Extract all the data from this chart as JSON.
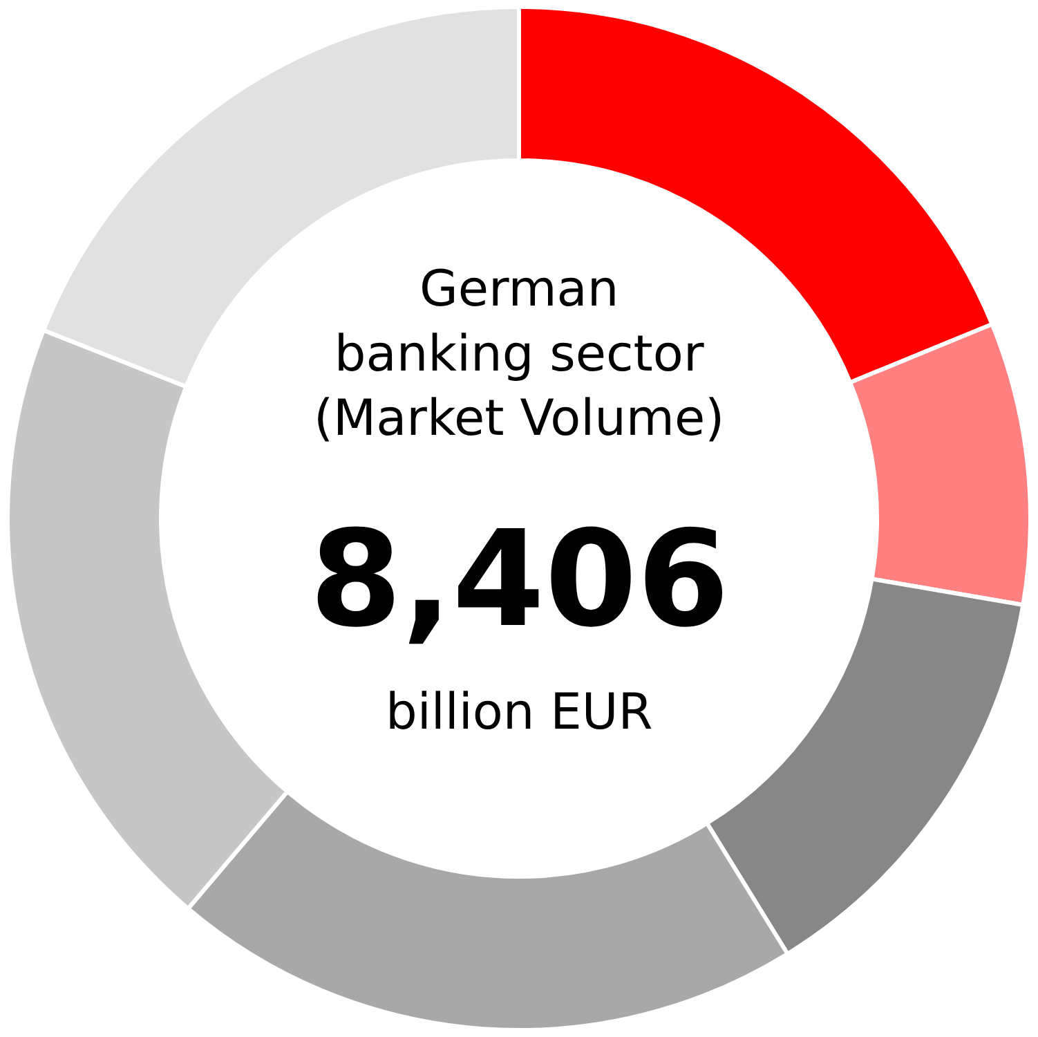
{
  "chart_data": {
    "type": "donut",
    "title": "German\nbanking sector\n(Market Volume)",
    "annotations": [
      "8,406",
      "billion EUR"
    ],
    "categories": [
      null,
      null,
      null,
      null,
      null,
      null
    ],
    "values": [
      18.8,
      8.9,
      13.5,
      20.0,
      19.8,
      19.0
    ],
    "colors": [
      "#ff0000",
      "#ff8080",
      "#878787",
      "#a8a8a8",
      "#c6c6c6",
      "#e1e1e1"
    ],
    "legend": false
  }
}
